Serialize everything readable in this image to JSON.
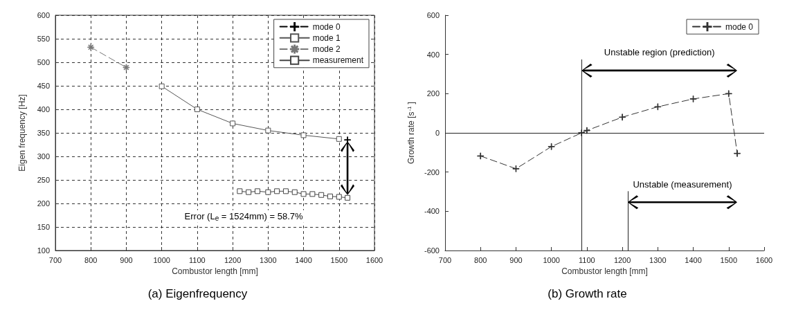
{
  "chart_data": [
    {
      "type": "line",
      "title": "(a) Eigenfrequency",
      "xlabel": "Combustor length [mm]",
      "ylabel": "Eigen frequency [Hz]",
      "xlim": [
        700,
        1600
      ],
      "xticks": [
        700,
        800,
        900,
        1000,
        1100,
        1200,
        1300,
        1400,
        1500,
        1600
      ],
      "ylim": [
        100,
        600
      ],
      "yticks": [
        100,
        150,
        200,
        250,
        300,
        350,
        400,
        450,
        500,
        550,
        600
      ],
      "grid": true,
      "legend": "top right",
      "series": [
        {
          "name": "mode 0",
          "color": "#000000",
          "marker": "cross",
          "line_style": "dashed",
          "x": [
            1524
          ],
          "values": [
            335
          ]
        },
        {
          "name": "mode 1",
          "color": "#555555",
          "marker": "square",
          "line_style": "solid",
          "x": [
            1000,
            1100,
            1200,
            1300,
            1400,
            1500
          ],
          "values": [
            449,
            400,
            370,
            355,
            345,
            337
          ]
        },
        {
          "name": "mode 2",
          "color": "#777777",
          "marker": "star",
          "line_style": "dashed",
          "x": [
            800,
            900
          ],
          "values": [
            532,
            489
          ]
        },
        {
          "name": "measurement",
          "color": "#444444",
          "marker": "square",
          "line_style": "solid",
          "x": [
            1220,
            1245,
            1270,
            1300,
            1325,
            1350,
            1375,
            1400,
            1425,
            1450,
            1475,
            1500,
            1524
          ],
          "values": [
            226,
            224,
            226,
            224,
            226,
            226,
            224,
            220,
            220,
            218,
            215,
            214,
            212
          ]
        }
      ],
      "annotations": [
        "Error (L$_{e}$ = 1524mm) = 58.7%"
      ]
    },
    {
      "type": "line",
      "title": "(b) Growth rate",
      "xlabel": "Combustor length [mm]",
      "ylabel": "Growth rate [s$^{-1}$]",
      "xlim": [
        700,
        1600
      ],
      "xticks": [
        700,
        800,
        900,
        1000,
        1100,
        1200,
        1300,
        1400,
        1500,
        1600
      ],
      "ylim": [
        -600,
        600
      ],
      "yticks": [
        -600,
        -400,
        -200,
        0,
        200,
        400,
        600
      ],
      "legend": "top right",
      "series": [
        {
          "name": "mode 0",
          "color": "#333333",
          "marker": "cross",
          "line_style": "dashed",
          "x": [
            800,
            900,
            1000,
            1085,
            1100,
            1200,
            1300,
            1400,
            1500,
            1524
          ],
          "values": [
            -118,
            -183,
            -70,
            0,
            12,
            80,
            133,
            173,
            200,
            -105
          ]
        }
      ],
      "ref_lines": [
        {
          "axis": "y",
          "value": 0
        },
        {
          "axis": "x",
          "value": 1085
        },
        {
          "axis": "x",
          "value": 1215
        }
      ],
      "annotations": [
        "Unstable region (prediction)",
        "Unstable (measurement)"
      ]
    }
  ]
}
